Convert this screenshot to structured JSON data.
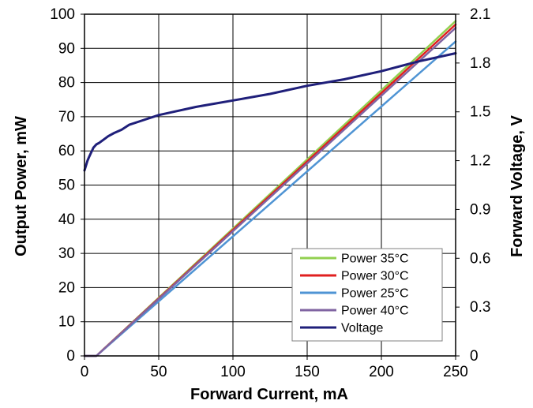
{
  "chart_data": {
    "type": "line",
    "xlabel": "Forward Current, mA",
    "ylabel": "Output Power, mW",
    "y2label": "Forward Voltage, V",
    "xlim": [
      0,
      250
    ],
    "ylim": [
      0,
      100
    ],
    "y2lim": [
      0,
      2.1
    ],
    "x_ticks": [
      "0",
      "50",
      "100",
      "150",
      "200",
      "250"
    ],
    "y_ticks": [
      "0",
      "10",
      "20",
      "30",
      "40",
      "50",
      "60",
      "70",
      "80",
      "90",
      "100"
    ],
    "y2_ticks": [
      "0",
      "0.3",
      "0.6",
      "0.9",
      "1.2",
      "1.5",
      "1.8",
      "2.1"
    ],
    "grid": true,
    "legend_position": "bottom-right",
    "series": [
      {
        "name": "Power  35°C",
        "color": "#92d050",
        "axis": "left",
        "x": [
          0,
          8,
          250
        ],
        "y": [
          0,
          0,
          98
        ]
      },
      {
        "name": "Power  30°C",
        "color": "#e02020",
        "axis": "left",
        "x": [
          0,
          8,
          250
        ],
        "y": [
          0,
          0,
          97
        ]
      },
      {
        "name": "Power  25°C",
        "color": "#4f94d4",
        "axis": "left",
        "x": [
          0,
          8,
          250
        ],
        "y": [
          0,
          0,
          92
        ]
      },
      {
        "name": "Power  40°C",
        "color": "#8064a2",
        "axis": "left",
        "x": [
          0,
          8,
          250
        ],
        "y": [
          0,
          0,
          96
        ]
      },
      {
        "name": "Voltage",
        "color": "#1f1f7a",
        "axis": "right",
        "x": [
          0,
          1,
          2,
          3,
          4,
          5,
          6,
          8,
          10,
          13,
          16,
          20,
          25,
          30,
          40,
          50,
          60,
          75,
          100,
          125,
          150,
          175,
          200,
          225,
          250
        ],
        "y": [
          1.14,
          1.17,
          1.2,
          1.22,
          1.24,
          1.26,
          1.28,
          1.3,
          1.31,
          1.33,
          1.35,
          1.37,
          1.39,
          1.42,
          1.45,
          1.48,
          1.5,
          1.53,
          1.57,
          1.61,
          1.66,
          1.7,
          1.75,
          1.81,
          1.86
        ]
      }
    ]
  }
}
